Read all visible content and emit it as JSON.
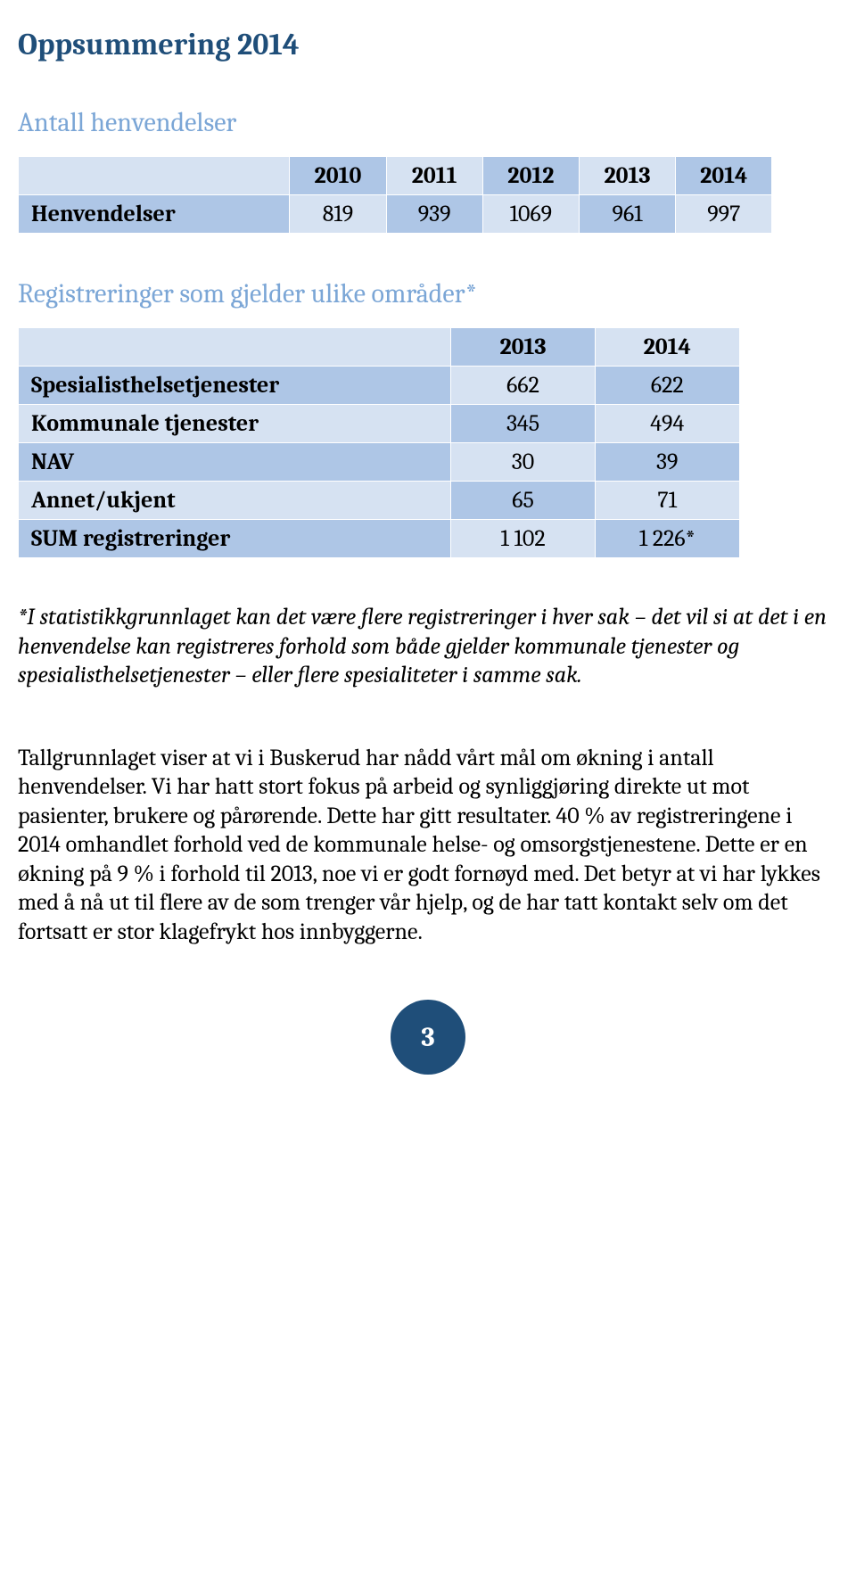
{
  "colors": {
    "heading_text": "#1f4e79",
    "subheading_text": "#7ba6d6",
    "table_light": "#d6e2f2",
    "table_dark": "#aec6e6",
    "table_border": "#ffffff",
    "body_text": "#000000",
    "page_badge_bg": "#1f4e79",
    "page_badge_text": "#ffffff"
  },
  "page_title": "Oppsummering 2014",
  "section1": {
    "heading": "Antall henvendelser",
    "table": {
      "header": [
        "",
        "2010",
        "2011",
        "2012",
        "2013",
        "2014"
      ],
      "rows": [
        {
          "label": "Henvendelser",
          "values": [
            "819",
            "939",
            "1069",
            "961",
            "997"
          ]
        }
      ]
    }
  },
  "section2": {
    "heading": "Registreringer som gjelder ulike områder*",
    "table": {
      "header": [
        "",
        "2013",
        "2014"
      ],
      "rows": [
        {
          "label": "Spesialisthelsetjenester",
          "values": [
            "662",
            "622"
          ]
        },
        {
          "label": "Kommunale tjenester",
          "values": [
            "345",
            "494"
          ]
        },
        {
          "label": "NAV",
          "values": [
            "30",
            "39"
          ]
        },
        {
          "label": "Annet/ukjent",
          "values": [
            "65",
            "71"
          ]
        },
        {
          "label": "SUM registreringer",
          "values": [
            "1 102",
            "1 226*"
          ]
        }
      ]
    }
  },
  "footnote": "*I statistikkgrunnlaget kan det være flere registreringer i hver sak – det vil si at det i en henvendelse kan registreres forhold som både gjelder kommunale tjenester og spesialisthelsetjenester – eller flere spesialiteter i samme sak.",
  "body_paragraph": "Tallgrunnlaget viser at vi i Buskerud har nådd vårt mål om økning i antall henvendelser.   Vi har hatt stort fokus på arbeid og synliggjøring direkte ut mot pasienter, brukere og pårørende.  Dette har gitt resultater.  40 % av registreringene i 2014 omhandlet forhold ved de  kommunale helse- og omsorgstjenestene.  Dette er en økning på 9 % i forhold til 2013,  noe vi er godt fornøyd med. Det betyr at vi har lykkes med å nå ut til flere av de som trenger vår hjelp, og de har tatt kontakt selv om det fortsatt er  stor klagefrykt hos innbyggerne.",
  "page_number": "3",
  "table1_style": {
    "col_widths": [
      "36%",
      "12.8%",
      "12.8%",
      "12.8%",
      "12.8%",
      "12.8%"
    ],
    "header_bg_alt": [
      "#d6e2f2",
      "#aec6e6"
    ],
    "row_bg": "#aec6e6",
    "label_bg": "#d6e2f2"
  },
  "table2_style": {
    "col_widths": [
      "60%",
      "20%",
      "20%"
    ],
    "row_alt_bg": [
      "#aec6e6",
      "#d6e2f2"
    ],
    "header_bg_alt": [
      "#d6e2f2",
      "#aec6e6"
    ]
  }
}
